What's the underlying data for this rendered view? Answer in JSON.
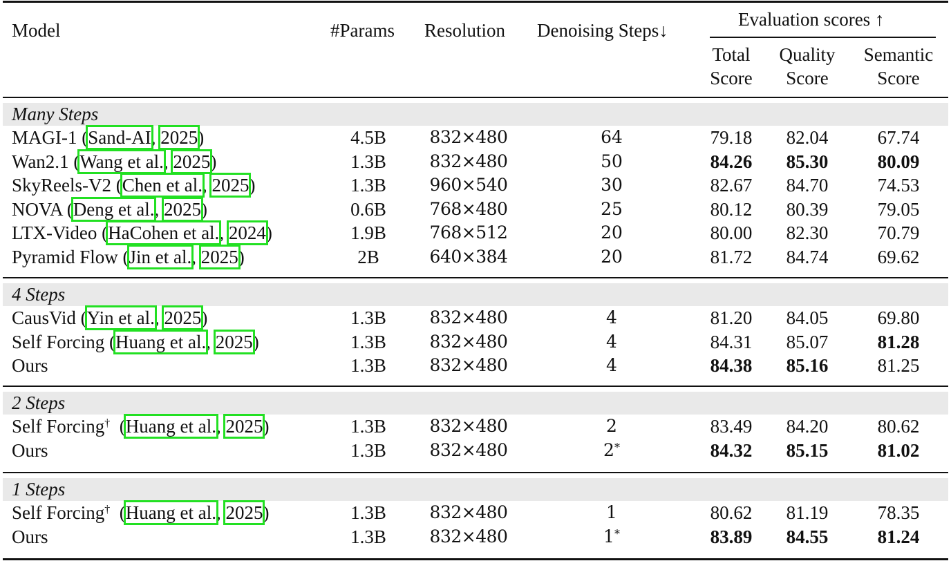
{
  "table": {
    "headers": {
      "model": "Model",
      "params": "#Params",
      "resolution": "Resolution",
      "denoising_steps": "Denoising Steps↓",
      "evaluation_group": "Evaluation scores ↑",
      "total_score_line1": "Total",
      "total_score_line2": "Score",
      "quality_score_line1": "Quality",
      "quality_score_line2": "Score",
      "semantic_score_line1": "Semantic",
      "semantic_score_line2": "Score"
    },
    "groups": [
      {
        "label": "Many Steps",
        "rows": [
          {
            "model": "MAGI-1",
            "cite_author": "Sand-AI",
            "cite_year": "2025",
            "dagger": "",
            "params": "4.5B",
            "resolution": "832×480",
            "steps": "64",
            "steps_star": "",
            "total": "79.18",
            "quality": "82.04",
            "semantic": "67.74",
            "bold": []
          },
          {
            "model": "Wan2.1",
            "cite_author": "Wang et al.",
            "cite_year": "2025",
            "dagger": "",
            "params": "1.3B",
            "resolution": "832×480",
            "steps": "50",
            "steps_star": "",
            "total": "84.26",
            "quality": "85.30",
            "semantic": "80.09",
            "bold": [
              "total",
              "quality",
              "semantic"
            ]
          },
          {
            "model": "SkyReels-V2",
            "cite_author": "Chen et al.",
            "cite_year": "2025",
            "dagger": "",
            "params": "1.3B",
            "resolution": "960×540",
            "steps": "30",
            "steps_star": "",
            "total": "82.67",
            "quality": "84.70",
            "semantic": "74.53",
            "bold": []
          },
          {
            "model": "NOVA",
            "cite_author": "Deng et al.",
            "cite_year": "2025",
            "dagger": "",
            "params": "0.6B",
            "resolution": "768×480",
            "steps": "25",
            "steps_star": "",
            "total": "80.12",
            "quality": "80.39",
            "semantic": "79.05",
            "bold": []
          },
          {
            "model": "LTX-Video",
            "cite_author": "HaCohen et al.",
            "cite_year": "2024",
            "dagger": "",
            "params": "1.9B",
            "resolution": "768×512",
            "steps": "20",
            "steps_star": "",
            "total": "80.00",
            "quality": "82.30",
            "semantic": "70.79",
            "bold": []
          },
          {
            "model": "Pyramid Flow",
            "cite_author": "Jin et al.",
            "cite_year": "2025",
            "dagger": "",
            "params": "2B",
            "resolution": "640×384",
            "steps": "20",
            "steps_star": "",
            "total": "81.72",
            "quality": "84.74",
            "semantic": "69.62",
            "bold": []
          }
        ]
      },
      {
        "label": "4 Steps",
        "rows": [
          {
            "model": "CausVid",
            "cite_author": "Yin et al.",
            "cite_year": "2025",
            "dagger": "",
            "params": "1.3B",
            "resolution": "832×480",
            "steps": "4",
            "steps_star": "",
            "total": "81.20",
            "quality": "84.05",
            "semantic": "69.80",
            "bold": []
          },
          {
            "model": "Self Forcing",
            "cite_author": "Huang et al.",
            "cite_year": "2025",
            "dagger": "",
            "params": "1.3B",
            "resolution": "832×480",
            "steps": "4",
            "steps_star": "",
            "total": "84.31",
            "quality": "85.07",
            "semantic": "81.28",
            "bold": [
              "semantic"
            ]
          },
          {
            "model": "Ours",
            "cite_author": "",
            "cite_year": "",
            "dagger": "",
            "params": "1.3B",
            "resolution": "832×480",
            "steps": "4",
            "steps_star": "",
            "total": "84.38",
            "quality": "85.16",
            "semantic": "81.25",
            "bold": [
              "total",
              "quality"
            ]
          }
        ]
      },
      {
        "label": "2 Steps",
        "rows": [
          {
            "model": "Self Forcing",
            "cite_author": "Huang et al.",
            "cite_year": "2025",
            "dagger": "†",
            "params": "1.3B",
            "resolution": "832×480",
            "steps": "2",
            "steps_star": "",
            "total": "83.49",
            "quality": "84.20",
            "semantic": "80.62",
            "bold": []
          },
          {
            "model": "Ours",
            "cite_author": "",
            "cite_year": "",
            "dagger": "",
            "params": "1.3B",
            "resolution": "832×480",
            "steps": "2",
            "steps_star": "*",
            "total": "84.32",
            "quality": "85.15",
            "semantic": "81.02",
            "bold": [
              "total",
              "quality",
              "semantic"
            ]
          }
        ]
      },
      {
        "label": "1 Steps",
        "rows": [
          {
            "model": "Self Forcing",
            "cite_author": "Huang et al.",
            "cite_year": "2025",
            "dagger": "†",
            "params": "1.3B",
            "resolution": "832×480",
            "steps": "1",
            "steps_star": "",
            "total": "80.62",
            "quality": "81.19",
            "semantic": "78.35",
            "bold": []
          },
          {
            "model": "Ours",
            "cite_author": "",
            "cite_year": "",
            "dagger": "",
            "params": "1.3B",
            "resolution": "832×480",
            "steps": "1",
            "steps_star": "*",
            "total": "83.89",
            "quality": "84.55",
            "semantic": "81.24",
            "bold": [
              "total",
              "quality",
              "semantic"
            ]
          }
        ]
      }
    ]
  },
  "colors": {
    "rule": "#111111",
    "group_bg": "#e9e9e9",
    "citation_box": "#22e022"
  }
}
